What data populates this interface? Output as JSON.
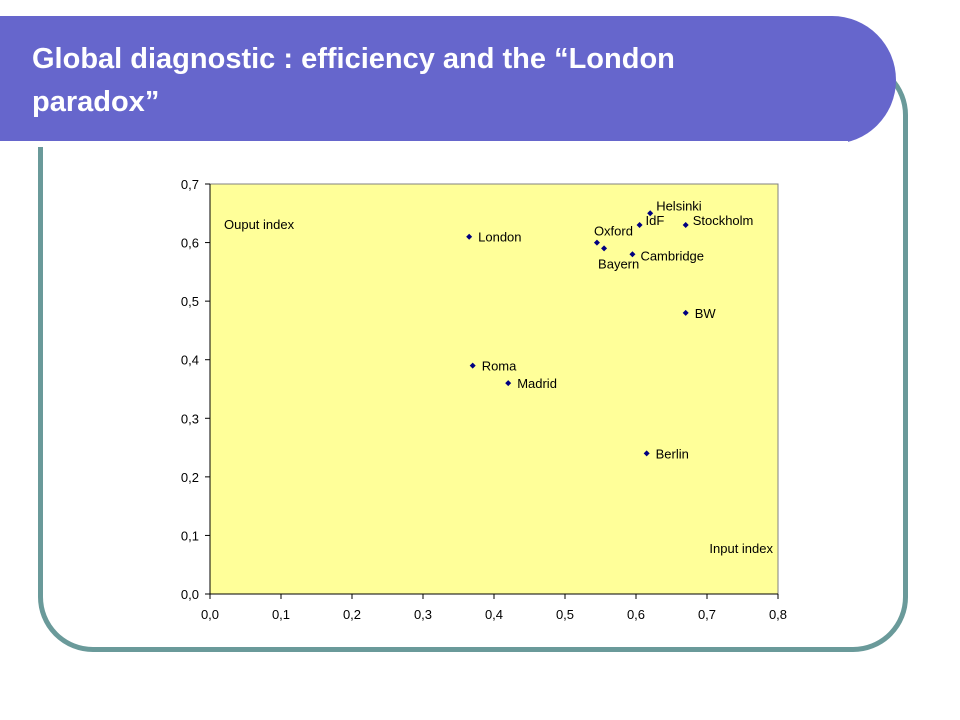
{
  "slide": {
    "title": "Global diagnostic : efficiency and the “London paradox”"
  },
  "colors": {
    "title_bar": "#6666cc",
    "frame": "#6a9a9a",
    "plot_background": "#ffff99",
    "marker": "#000080"
  },
  "chart_data": {
    "type": "scatter",
    "title": "",
    "xlabel": "Input index",
    "ylabel": "Ouput index",
    "xlim": [
      0.0,
      0.8
    ],
    "ylim": [
      0.0,
      0.7
    ],
    "x_ticks": [
      "0,0",
      "0,1",
      "0,2",
      "0,3",
      "0,4",
      "0,5",
      "0,6",
      "0,7",
      "0,8"
    ],
    "y_ticks": [
      "0,0",
      "0,1",
      "0,2",
      "0,3",
      "0,4",
      "0,5",
      "0,6",
      "0,7"
    ],
    "grid": false,
    "points": [
      {
        "label": "Helsinki",
        "x": 0.62,
        "y": 0.65
      },
      {
        "label": "Stockholm",
        "x": 0.67,
        "y": 0.63
      },
      {
        "label": "IdF",
        "x": 0.605,
        "y": 0.63
      },
      {
        "label": "Oxford",
        "x": 0.545,
        "y": 0.6
      },
      {
        "label": "Bayern",
        "x": 0.555,
        "y": 0.59
      },
      {
        "label": "Cambridge",
        "x": 0.595,
        "y": 0.58
      },
      {
        "label": "London",
        "x": 0.365,
        "y": 0.61
      },
      {
        "label": "BW",
        "x": 0.67,
        "y": 0.48
      },
      {
        "label": "Roma",
        "x": 0.37,
        "y": 0.39
      },
      {
        "label": "Madrid",
        "x": 0.42,
        "y": 0.36
      },
      {
        "label": "Berlin",
        "x": 0.615,
        "y": 0.24
      }
    ]
  }
}
